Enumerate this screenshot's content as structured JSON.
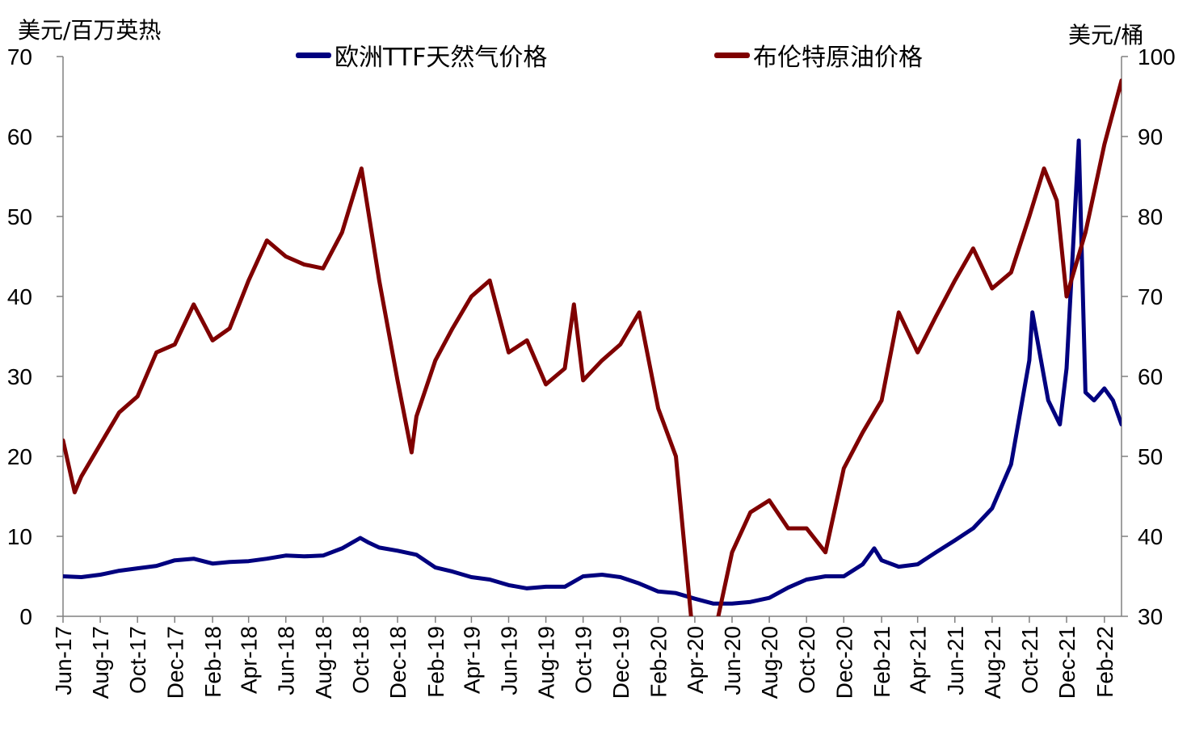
{
  "chart_data": {
    "type": "line",
    "left_axis_unit": "美元/百万英热",
    "right_axis_unit": "美元/桶",
    "y_left_range": [
      0,
      70
    ],
    "y_left_ticks": [
      "0",
      "10",
      "20",
      "30",
      "40",
      "50",
      "60",
      "70"
    ],
    "y_right_range": [
      30,
      100
    ],
    "y_right_ticks": [
      "30",
      "40",
      "50",
      "60",
      "70",
      "80",
      "90",
      "100"
    ],
    "x_range": [
      "2017-06",
      "2022-03"
    ],
    "x_ticks": [
      {
        "date": "2017-06",
        "label": "Jun-17"
      },
      {
        "date": "2017-08",
        "label": "Aug-17"
      },
      {
        "date": "2017-10",
        "label": "Oct-17"
      },
      {
        "date": "2017-12",
        "label": "Dec-17"
      },
      {
        "date": "2018-02",
        "label": "Feb-18"
      },
      {
        "date": "2018-04",
        "label": "Apr-18"
      },
      {
        "date": "2018-06",
        "label": "Jun-18"
      },
      {
        "date": "2018-08",
        "label": "Aug-18"
      },
      {
        "date": "2018-10",
        "label": "Oct-18"
      },
      {
        "date": "2018-12",
        "label": "Dec-18"
      },
      {
        "date": "2019-02",
        "label": "Feb-19"
      },
      {
        "date": "2019-04",
        "label": "Apr-19"
      },
      {
        "date": "2019-06",
        "label": "Jun-19"
      },
      {
        "date": "2019-08",
        "label": "Aug-19"
      },
      {
        "date": "2019-10",
        "label": "Oct-19"
      },
      {
        "date": "2019-12",
        "label": "Dec-19"
      },
      {
        "date": "2020-02",
        "label": "Feb-20"
      },
      {
        "date": "2020-04",
        "label": "Apr-20"
      },
      {
        "date": "2020-06",
        "label": "Jun-20"
      },
      {
        "date": "2020-08",
        "label": "Aug-20"
      },
      {
        "date": "2020-10",
        "label": "Oct-20"
      },
      {
        "date": "2020-12",
        "label": "Dec-20"
      },
      {
        "date": "2021-02",
        "label": "Feb-21"
      },
      {
        "date": "2021-04",
        "label": "Apr-21"
      },
      {
        "date": "2021-06",
        "label": "Jun-21"
      },
      {
        "date": "2021-08",
        "label": "Aug-21"
      },
      {
        "date": "2021-10",
        "label": "Oct-21"
      },
      {
        "date": "2021-12",
        "label": "Dec-21"
      },
      {
        "date": "2022-02",
        "label": "Feb-22"
      }
    ],
    "grid": false,
    "legend_position": "top",
    "series": [
      {
        "name": "欧洲TTF天然气价格",
        "axis": "left",
        "color": "#00007F",
        "points": [
          [
            "2017-06-01",
            5.0
          ],
          [
            "2017-07-01",
            4.9
          ],
          [
            "2017-08-01",
            5.2
          ],
          [
            "2017-09-01",
            5.7
          ],
          [
            "2017-10-01",
            6.0
          ],
          [
            "2017-11-01",
            6.3
          ],
          [
            "2017-12-01",
            7.0
          ],
          [
            "2018-01-01",
            7.2
          ],
          [
            "2018-02-01",
            6.6
          ],
          [
            "2018-03-01",
            6.8
          ],
          [
            "2018-04-01",
            6.9
          ],
          [
            "2018-05-01",
            7.2
          ],
          [
            "2018-06-01",
            7.6
          ],
          [
            "2018-07-01",
            7.5
          ],
          [
            "2018-08-01",
            7.6
          ],
          [
            "2018-09-01",
            8.5
          ],
          [
            "2018-10-01",
            9.8
          ],
          [
            "2018-10-15",
            9.2
          ],
          [
            "2018-11-01",
            8.6
          ],
          [
            "2018-12-01",
            8.2
          ],
          [
            "2019-01-01",
            7.7
          ],
          [
            "2019-02-01",
            6.1
          ],
          [
            "2019-03-01",
            5.6
          ],
          [
            "2019-04-01",
            4.9
          ],
          [
            "2019-05-01",
            4.6
          ],
          [
            "2019-06-01",
            3.9
          ],
          [
            "2019-07-01",
            3.5
          ],
          [
            "2019-08-01",
            3.7
          ],
          [
            "2019-09-01",
            3.7
          ],
          [
            "2019-10-01",
            5.0
          ],
          [
            "2019-11-01",
            5.2
          ],
          [
            "2019-12-01",
            4.9
          ],
          [
            "2020-01-01",
            4.1
          ],
          [
            "2020-02-01",
            3.1
          ],
          [
            "2020-03-01",
            2.9
          ],
          [
            "2020-04-01",
            2.2
          ],
          [
            "2020-05-01",
            1.6
          ],
          [
            "2020-06-01",
            1.6
          ],
          [
            "2020-07-01",
            1.8
          ],
          [
            "2020-08-01",
            2.3
          ],
          [
            "2020-09-01",
            3.6
          ],
          [
            "2020-10-01",
            4.6
          ],
          [
            "2020-11-01",
            5.0
          ],
          [
            "2020-12-01",
            5.0
          ],
          [
            "2021-01-01",
            6.5
          ],
          [
            "2021-01-20",
            8.5
          ],
          [
            "2021-02-01",
            7.0
          ],
          [
            "2021-03-01",
            6.2
          ],
          [
            "2021-04-01",
            6.5
          ],
          [
            "2021-05-01",
            8.0
          ],
          [
            "2021-06-01",
            9.5
          ],
          [
            "2021-07-01",
            11.0
          ],
          [
            "2021-08-01",
            13.5
          ],
          [
            "2021-09-01",
            19.0
          ],
          [
            "2021-10-01",
            32.0
          ],
          [
            "2021-10-06",
            38.0
          ],
          [
            "2021-11-01",
            27.0
          ],
          [
            "2021-11-20",
            24.0
          ],
          [
            "2021-12-01",
            31.0
          ],
          [
            "2021-12-21",
            59.5
          ],
          [
            "2022-01-01",
            28.0
          ],
          [
            "2022-01-15",
            27.0
          ],
          [
            "2022-02-01",
            28.5
          ],
          [
            "2022-02-15",
            27.0
          ],
          [
            "2022-03-01",
            24.0
          ]
        ]
      },
      {
        "name": "布伦特原油价格",
        "axis": "right",
        "color": "#7F0000",
        "points": [
          [
            "2017-06-01",
            52.0
          ],
          [
            "2017-06-20",
            45.5
          ],
          [
            "2017-07-01",
            47.5
          ],
          [
            "2017-08-01",
            51.5
          ],
          [
            "2017-09-01",
            55.5
          ],
          [
            "2017-10-01",
            57.5
          ],
          [
            "2017-11-01",
            63.0
          ],
          [
            "2017-12-01",
            64.0
          ],
          [
            "2018-01-01",
            69.0
          ],
          [
            "2018-02-01",
            64.5
          ],
          [
            "2018-03-01",
            66.0
          ],
          [
            "2018-04-01",
            72.0
          ],
          [
            "2018-05-01",
            77.0
          ],
          [
            "2018-06-01",
            75.0
          ],
          [
            "2018-07-01",
            74.0
          ],
          [
            "2018-08-01",
            73.5
          ],
          [
            "2018-09-01",
            78.0
          ],
          [
            "2018-10-03",
            86.0
          ],
          [
            "2018-11-01",
            72.0
          ],
          [
            "2018-12-01",
            59.5
          ],
          [
            "2018-12-24",
            50.5
          ],
          [
            "2019-01-01",
            55.0
          ],
          [
            "2019-02-01",
            62.0
          ],
          [
            "2019-03-01",
            66.0
          ],
          [
            "2019-04-01",
            70.0
          ],
          [
            "2019-05-01",
            72.0
          ],
          [
            "2019-06-01",
            63.0
          ],
          [
            "2019-07-01",
            64.5
          ],
          [
            "2019-08-01",
            59.0
          ],
          [
            "2019-09-01",
            61.0
          ],
          [
            "2019-09-16",
            69.0
          ],
          [
            "2019-10-01",
            59.5
          ],
          [
            "2019-11-01",
            62.0
          ],
          [
            "2019-12-01",
            64.0
          ],
          [
            "2020-01-01",
            68.0
          ],
          [
            "2020-02-01",
            56.0
          ],
          [
            "2020-03-01",
            50.0
          ],
          [
            "2020-04-01",
            25.0
          ],
          [
            "2020-04-21",
            20.0
          ],
          [
            "2020-05-01",
            27.0
          ],
          [
            "2020-06-01",
            38.0
          ],
          [
            "2020-07-01",
            43.0
          ],
          [
            "2020-08-01",
            44.5
          ],
          [
            "2020-09-01",
            41.0
          ],
          [
            "2020-10-01",
            41.0
          ],
          [
            "2020-11-01",
            38.0
          ],
          [
            "2020-12-01",
            48.5
          ],
          [
            "2021-01-01",
            53.0
          ],
          [
            "2021-02-01",
            57.0
          ],
          [
            "2021-03-01",
            68.0
          ],
          [
            "2021-04-01",
            63.0
          ],
          [
            "2021-05-01",
            67.5
          ],
          [
            "2021-06-01",
            72.0
          ],
          [
            "2021-07-01",
            76.0
          ],
          [
            "2021-08-01",
            71.0
          ],
          [
            "2021-09-01",
            73.0
          ],
          [
            "2021-10-01",
            80.0
          ],
          [
            "2021-10-25",
            86.0
          ],
          [
            "2021-11-15",
            82.0
          ],
          [
            "2021-12-01",
            70.0
          ],
          [
            "2022-01-01",
            78.0
          ],
          [
            "2022-02-01",
            89.0
          ],
          [
            "2022-03-01",
            97.0
          ],
          [
            "2022-03-08",
            93.0
          ]
        ]
      }
    ]
  }
}
